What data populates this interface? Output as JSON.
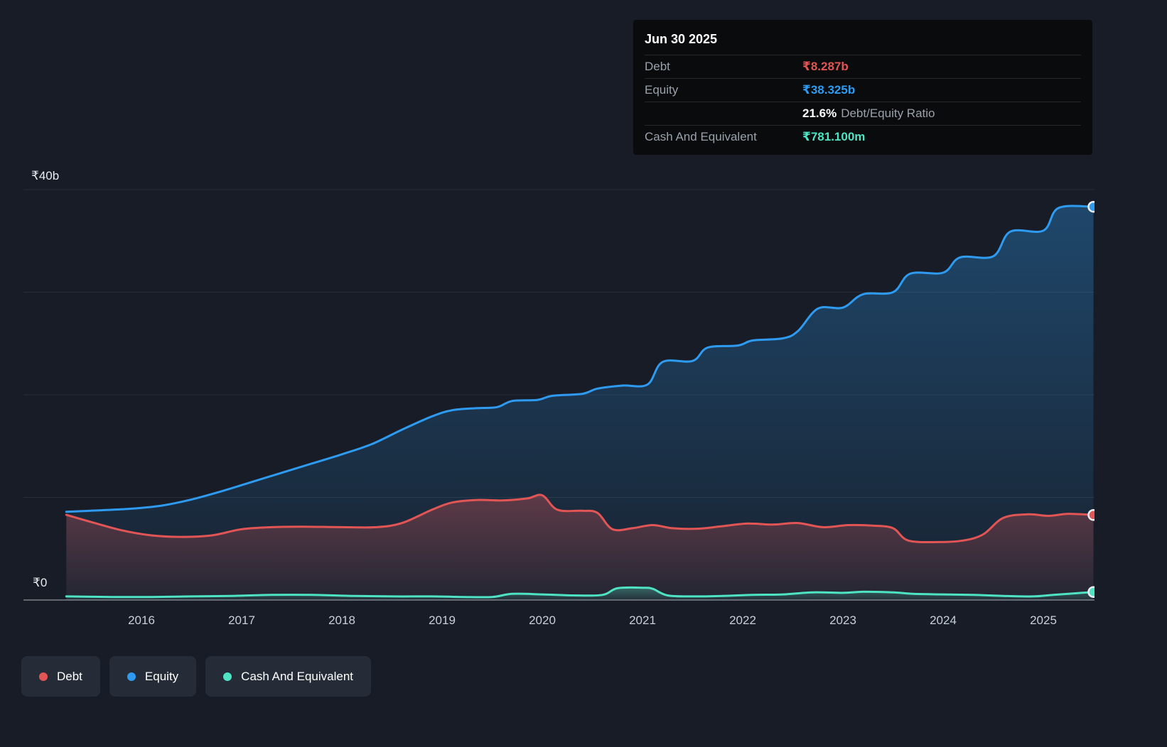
{
  "colors": {
    "background": "#171c26",
    "debt": "#e25555",
    "equity": "#2e9bf0",
    "cash": "#4de3c3",
    "grid": "rgba(255,255,255,0.07)",
    "zero_line": "rgba(255,255,255,0.45)",
    "tick_text": "#c9cfd7"
  },
  "y_axis": {
    "top_label": "₹40b",
    "zero_label": "₹0"
  },
  "tooltip": {
    "date": "Jun 30 2025",
    "debt": {
      "label": "Debt",
      "value": "₹8.287b"
    },
    "equity": {
      "label": "Equity",
      "value": "₹38.325b"
    },
    "ratio": {
      "value": "21.6%",
      "label": "Debt/Equity Ratio"
    },
    "cash": {
      "label": "Cash And Equivalent",
      "value": "₹781.100m"
    }
  },
  "legend": {
    "items": [
      {
        "label": "Debt"
      },
      {
        "label": "Equity"
      },
      {
        "label": "Cash And Equivalent"
      }
    ]
  },
  "chart_data": {
    "type": "area",
    "x_unit": "year",
    "y_unit": "₹ billions",
    "xlim": [
      2015.25,
      2025.5
    ],
    "ylim": [
      0,
      40
    ],
    "grid": true,
    "legend_position": "bottom-left",
    "y_gridlines": [
      0,
      10,
      20,
      30,
      40
    ],
    "x_ticks": [
      2016,
      2017,
      2018,
      2019,
      2020,
      2021,
      2022,
      2023,
      2024,
      2025
    ],
    "series": [
      {
        "name": "Equity",
        "color_key": "equity",
        "points": [
          [
            2015.25,
            8.6
          ],
          [
            2015.6,
            8.75
          ],
          [
            2015.9,
            8.9
          ],
          [
            2016.2,
            9.2
          ],
          [
            2016.5,
            9.8
          ],
          [
            2016.8,
            10.6
          ],
          [
            2017.1,
            11.5
          ],
          [
            2017.4,
            12.4
          ],
          [
            2017.7,
            13.3
          ],
          [
            2018.0,
            14.2
          ],
          [
            2018.3,
            15.2
          ],
          [
            2018.6,
            16.6
          ],
          [
            2018.9,
            17.9
          ],
          [
            2019.1,
            18.5
          ],
          [
            2019.35,
            18.7
          ],
          [
            2019.55,
            18.8
          ],
          [
            2019.7,
            19.4
          ],
          [
            2019.95,
            19.5
          ],
          [
            2020.1,
            19.9
          ],
          [
            2020.4,
            20.1
          ],
          [
            2020.55,
            20.6
          ],
          [
            2020.8,
            20.9
          ],
          [
            2021.05,
            21.0
          ],
          [
            2021.2,
            23.2
          ],
          [
            2021.5,
            23.3
          ],
          [
            2021.65,
            24.6
          ],
          [
            2021.95,
            24.8
          ],
          [
            2022.1,
            25.3
          ],
          [
            2022.4,
            25.5
          ],
          [
            2022.55,
            26.2
          ],
          [
            2022.75,
            28.4
          ],
          [
            2023.0,
            28.5
          ],
          [
            2023.2,
            29.8
          ],
          [
            2023.5,
            30.0
          ],
          [
            2023.67,
            31.8
          ],
          [
            2024.0,
            31.9
          ],
          [
            2024.17,
            33.4
          ],
          [
            2024.5,
            33.5
          ],
          [
            2024.67,
            35.9
          ],
          [
            2025.0,
            36.0
          ],
          [
            2025.15,
            38.2
          ],
          [
            2025.5,
            38.325
          ]
        ]
      },
      {
        "name": "Debt",
        "color_key": "debt",
        "points": [
          [
            2015.25,
            8.3
          ],
          [
            2015.5,
            7.6
          ],
          [
            2015.8,
            6.8
          ],
          [
            2016.1,
            6.3
          ],
          [
            2016.4,
            6.15
          ],
          [
            2016.7,
            6.3
          ],
          [
            2017.0,
            6.9
          ],
          [
            2017.3,
            7.1
          ],
          [
            2017.6,
            7.15
          ],
          [
            2018.0,
            7.1
          ],
          [
            2018.35,
            7.1
          ],
          [
            2018.6,
            7.5
          ],
          [
            2018.9,
            8.8
          ],
          [
            2019.1,
            9.5
          ],
          [
            2019.35,
            9.75
          ],
          [
            2019.6,
            9.7
          ],
          [
            2019.85,
            9.9
          ],
          [
            2020.0,
            10.2
          ],
          [
            2020.15,
            8.8
          ],
          [
            2020.4,
            8.7
          ],
          [
            2020.55,
            8.5
          ],
          [
            2020.7,
            6.9
          ],
          [
            2020.9,
            7.0
          ],
          [
            2021.1,
            7.3
          ],
          [
            2021.3,
            7.0
          ],
          [
            2021.55,
            6.95
          ],
          [
            2021.8,
            7.2
          ],
          [
            2022.05,
            7.45
          ],
          [
            2022.3,
            7.35
          ],
          [
            2022.55,
            7.5
          ],
          [
            2022.8,
            7.1
          ],
          [
            2023.05,
            7.3
          ],
          [
            2023.3,
            7.25
          ],
          [
            2023.5,
            7.0
          ],
          [
            2023.65,
            5.8
          ],
          [
            2023.95,
            5.65
          ],
          [
            2024.2,
            5.8
          ],
          [
            2024.4,
            6.4
          ],
          [
            2024.6,
            8.0
          ],
          [
            2024.85,
            8.35
          ],
          [
            2025.05,
            8.2
          ],
          [
            2025.25,
            8.4
          ],
          [
            2025.5,
            8.287
          ]
        ]
      },
      {
        "name": "Cash And Equivalent",
        "color_key": "cash",
        "points": [
          [
            2015.25,
            0.35
          ],
          [
            2015.7,
            0.3
          ],
          [
            2016.1,
            0.3
          ],
          [
            2016.5,
            0.35
          ],
          [
            2016.9,
            0.4
          ],
          [
            2017.3,
            0.5
          ],
          [
            2017.7,
            0.5
          ],
          [
            2018.1,
            0.4
          ],
          [
            2018.5,
            0.35
          ],
          [
            2018.9,
            0.35
          ],
          [
            2019.2,
            0.3
          ],
          [
            2019.5,
            0.3
          ],
          [
            2019.7,
            0.6
          ],
          [
            2020.0,
            0.55
          ],
          [
            2020.3,
            0.45
          ],
          [
            2020.6,
            0.5
          ],
          [
            2020.75,
            1.15
          ],
          [
            2021.0,
            1.2
          ],
          [
            2021.1,
            1.1
          ],
          [
            2021.25,
            0.45
          ],
          [
            2021.5,
            0.35
          ],
          [
            2021.8,
            0.4
          ],
          [
            2022.1,
            0.5
          ],
          [
            2022.4,
            0.55
          ],
          [
            2022.7,
            0.75
          ],
          [
            2023.0,
            0.7
          ],
          [
            2023.2,
            0.8
          ],
          [
            2023.5,
            0.75
          ],
          [
            2023.7,
            0.6
          ],
          [
            2024.0,
            0.55
          ],
          [
            2024.3,
            0.5
          ],
          [
            2024.6,
            0.4
          ],
          [
            2024.9,
            0.35
          ],
          [
            2025.1,
            0.5
          ],
          [
            2025.5,
            0.781
          ]
        ]
      }
    ]
  }
}
